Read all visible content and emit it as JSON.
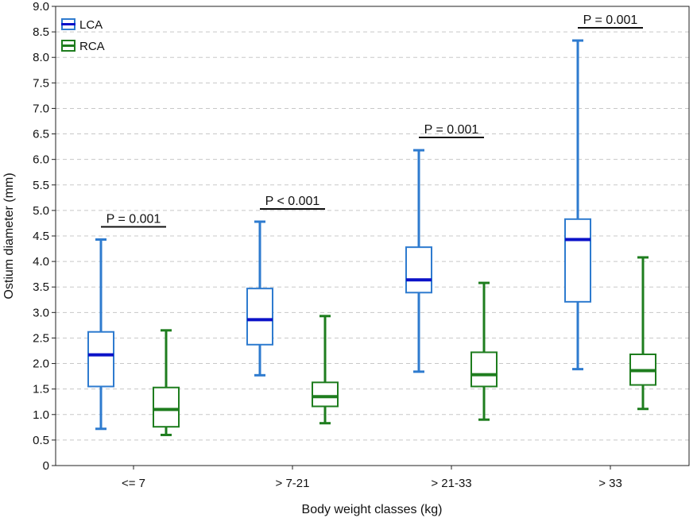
{
  "chart_data": {
    "type": "boxplot",
    "title": "",
    "xlabel": "Body weight classes (kg)",
    "ylabel": "Ostium diameter (mm)",
    "ylim": [
      0,
      9
    ],
    "yticks": [
      0,
      0.5,
      1.0,
      1.5,
      2.0,
      2.5,
      3.0,
      3.5,
      4.0,
      4.5,
      5.0,
      5.5,
      6.0,
      6.5,
      7.0,
      7.5,
      8.0,
      8.5,
      9.0
    ],
    "ytick_labels": [
      "0",
      "0.5",
      "1.0",
      "1.5",
      "2.0",
      "2.5",
      "3.0",
      "3.5",
      "4.0",
      "4.5",
      "5.0",
      "5.5",
      "6.0",
      "6.5",
      "7.0",
      "7.5",
      "8.0",
      "8.5",
      "9.0"
    ],
    "grid": "horizontal dashed",
    "legend_position": "top-left",
    "categories": [
      "<= 7",
      "> 7-21",
      "> 21-33",
      "> 33"
    ],
    "series": [
      {
        "name": "LCA",
        "box_color": "#2e7bcf",
        "median_color": "#0b12c8",
        "boxes": [
          {
            "min": 0.72,
            "q1": 1.55,
            "median": 2.17,
            "q3": 2.62,
            "max": 4.43
          },
          {
            "min": 1.77,
            "q1": 2.37,
            "median": 2.86,
            "q3": 3.47,
            "max": 4.78
          },
          {
            "min": 1.84,
            "q1": 3.39,
            "median": 3.64,
            "q3": 4.28,
            "max": 6.18
          },
          {
            "min": 1.89,
            "q1": 3.21,
            "median": 4.43,
            "q3": 4.83,
            "max": 8.33
          }
        ]
      },
      {
        "name": "RCA",
        "box_color": "#1e7d1e",
        "median_color": "#1e7d1e",
        "boxes": [
          {
            "min": 0.6,
            "q1": 0.76,
            "median": 1.1,
            "q3": 1.53,
            "max": 2.65
          },
          {
            "min": 0.83,
            "q1": 1.16,
            "median": 1.35,
            "q3": 1.63,
            "max": 2.93
          },
          {
            "min": 0.9,
            "q1": 1.55,
            "median": 1.78,
            "q3": 2.22,
            "max": 3.58
          },
          {
            "min": 1.11,
            "q1": 1.58,
            "median": 1.86,
            "q3": 2.18,
            "max": 4.08
          }
        ]
      }
    ],
    "annotations": [
      {
        "category_index": 0,
        "text": "P = 0.001",
        "y": 4.68
      },
      {
        "category_index": 1,
        "text": "P < 0.001",
        "y": 5.03
      },
      {
        "category_index": 2,
        "text": "P = 0.001",
        "y": 6.43
      },
      {
        "category_index": 3,
        "text": "P = 0.001",
        "y": 8.58
      }
    ]
  }
}
